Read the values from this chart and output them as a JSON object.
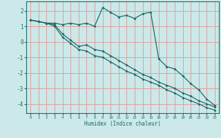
{
  "xlabel": "Humidex (Indice chaleur)",
  "xlim": [
    -0.5,
    23.5
  ],
  "ylim": [
    -4.6,
    2.6
  ],
  "yticks": [
    -4,
    -3,
    -2,
    -1,
    0,
    1,
    2
  ],
  "xticks": [
    0,
    1,
    2,
    3,
    4,
    5,
    6,
    7,
    8,
    9,
    10,
    11,
    12,
    13,
    14,
    15,
    16,
    17,
    18,
    19,
    20,
    21,
    22,
    23
  ],
  "bg_color": "#cce8e8",
  "grid_color": "#daa0a0",
  "line_color": "#1a6b6b",
  "line1_x": [
    0,
    1,
    2,
    3,
    4,
    5,
    6,
    7,
    8,
    9,
    10,
    11,
    12,
    13,
    14,
    15,
    16,
    17,
    18,
    19,
    20,
    21,
    22,
    23
  ],
  "line1_y": [
    1.4,
    1.3,
    1.2,
    1.2,
    1.1,
    1.2,
    1.1,
    1.2,
    1.0,
    2.2,
    1.9,
    1.6,
    1.7,
    1.5,
    1.8,
    1.9,
    -1.1,
    -1.6,
    -1.75,
    -2.2,
    -2.7,
    -3.1,
    -3.7,
    -4.1
  ],
  "line2_x": [
    0,
    1,
    2,
    3,
    4,
    5,
    6,
    7,
    8,
    9,
    10,
    11,
    12,
    13,
    14,
    15,
    16,
    17,
    18,
    19,
    20,
    21,
    22,
    23
  ],
  "line2_y": [
    1.4,
    1.3,
    1.2,
    1.1,
    0.5,
    0.1,
    -0.3,
    -0.2,
    -0.5,
    -0.6,
    -0.9,
    -1.2,
    -1.5,
    -1.8,
    -2.1,
    -2.3,
    -2.6,
    -2.8,
    -3.0,
    -3.3,
    -3.5,
    -3.8,
    -4.0,
    -4.2
  ],
  "line3_x": [
    0,
    1,
    2,
    3,
    4,
    5,
    6,
    7,
    8,
    9,
    10,
    11,
    12,
    13,
    14,
    15,
    16,
    17,
    18,
    19,
    20,
    21,
    22,
    23
  ],
  "line3_y": [
    1.4,
    1.3,
    1.2,
    1.0,
    0.3,
    -0.1,
    -0.5,
    -0.6,
    -0.9,
    -1.0,
    -1.3,
    -1.6,
    -1.9,
    -2.1,
    -2.4,
    -2.6,
    -2.8,
    -3.1,
    -3.3,
    -3.6,
    -3.8,
    -4.0,
    -4.25,
    -4.4
  ]
}
